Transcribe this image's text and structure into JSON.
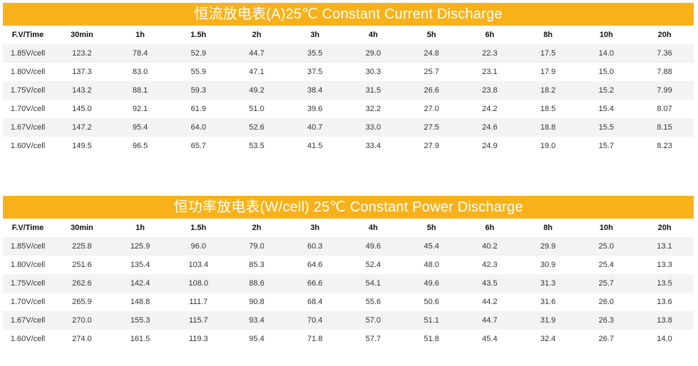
{
  "tables": [
    {
      "title": "恒流放电表(A)25℃ Constant Current Discharge",
      "headers": [
        "F.V/Time",
        "30min",
        "1h",
        "1.5h",
        "2h",
        "3h",
        "4h",
        "5h",
        "6h",
        "8h",
        "10h",
        "20h"
      ],
      "rows": [
        [
          "1.85V/cell",
          "123.2",
          "78.4",
          "52.9",
          "44.7",
          "35.5",
          "29.0",
          "24.8",
          "22.3",
          "17.5",
          "14.0",
          "7.36"
        ],
        [
          "1.80V/cell",
          "137.3",
          "83.0",
          "55.9",
          "47.1",
          "37.5",
          "30.3",
          "25.7",
          "23.1",
          "17.9",
          "15.0",
          "7.88"
        ],
        [
          "1.75V/cell",
          "143.2",
          "88.1",
          "59.3",
          "49.2",
          "38.4",
          "31.5",
          "26.6",
          "23.8",
          "18.2",
          "15.2",
          "7.99"
        ],
        [
          "1.70V/cell",
          "145.0",
          "92.1",
          "61.9",
          "51.0",
          "39.6",
          "32.2",
          "27.0",
          "24.2",
          "18.5",
          "15.4",
          "8.07"
        ],
        [
          "1.67V/cell",
          "147.2",
          "95.4",
          "64.0",
          "52.6",
          "40.7",
          "33.0",
          "27.5",
          "24.6",
          "18.8",
          "15.5",
          "8.15"
        ],
        [
          "1.60V/cell",
          "149.5",
          "96.5",
          "65.7",
          "53.5",
          "41.5",
          "33.4",
          "27.9",
          "24.9",
          "19.0",
          "15.7",
          "8.23"
        ]
      ]
    },
    {
      "title": "恒功率放电表(W/cell) 25℃ Constant Power Discharge",
      "headers": [
        "F.V/Time",
        "30min",
        "1h",
        "1.5h",
        "2h",
        "3h",
        "4h",
        "5h",
        "6h",
        "8h",
        "10h",
        "20h"
      ],
      "rows": [
        [
          "1.85V/cell",
          "225.8",
          "125.9",
          "96.0",
          "79.0",
          "60.3",
          "49.6",
          "45.4",
          "40.2",
          "29.9",
          "25.0",
          "13.1"
        ],
        [
          "1.80V/cell",
          "251.6",
          "135.4",
          "103.4",
          "85.3",
          "64.6",
          "52.4",
          "48.0",
          "42.3",
          "30.9",
          "25.4",
          "13.3"
        ],
        [
          "1.75V/cell",
          "262.6",
          "142.4",
          "108.0",
          "88.6",
          "66.6",
          "54.1",
          "49.6",
          "43.5",
          "31.3",
          "25.7",
          "13.5"
        ],
        [
          "1.70V/cell",
          "265.9",
          "148.8",
          "111.7",
          "90.8",
          "68.4",
          "55.6",
          "50.6",
          "44.2",
          "31.6",
          "26.0",
          "13.6"
        ],
        [
          "1.67V/cell",
          "270.0",
          "155.3",
          "115.7",
          "93.4",
          "70.4",
          "57.0",
          "51.1",
          "44.7",
          "31.9",
          "26.3",
          "13.8"
        ],
        [
          "1.60V/cell",
          "274.0",
          "161.5",
          "119.3",
          "95.4",
          "71.8",
          "57.7",
          "51.8",
          "45.4",
          "32.4",
          "26.7",
          "14.0"
        ]
      ]
    }
  ],
  "colors": {
    "banner": "#f7b21b",
    "stripe": "#f3f3f3"
  }
}
